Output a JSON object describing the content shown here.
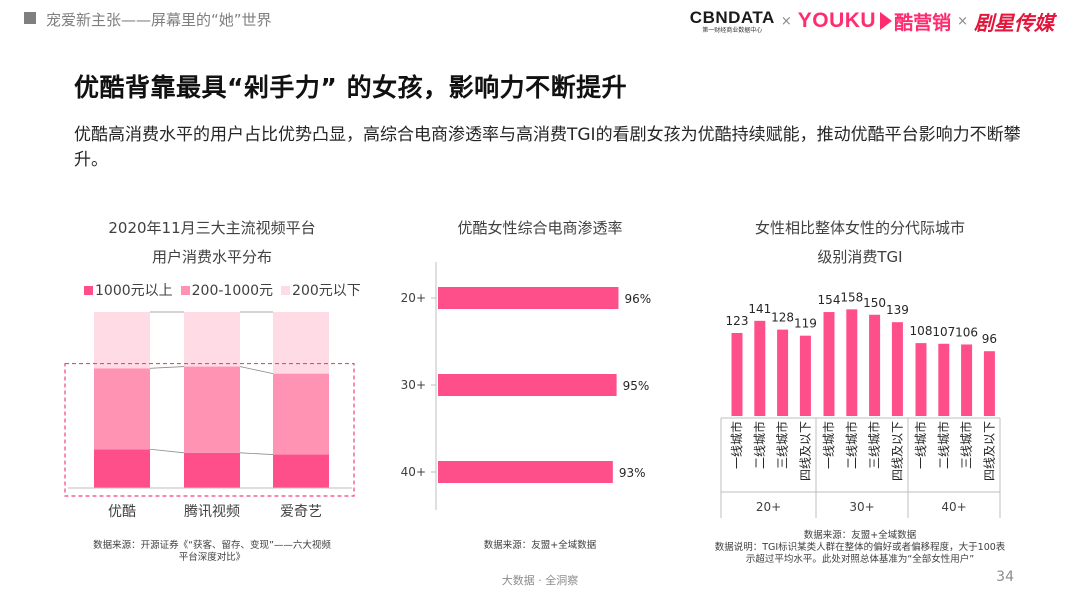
{
  "header": {
    "section_title": "宠爱新主张——屏幕里的“她”世界",
    "logos": {
      "cbndata": "CBNDATA",
      "cbndata_sub": "第一财经商业数据中心",
      "times1": "×",
      "youku": "YOUKU",
      "kuyingxiao": "酷营销",
      "times2": "×",
      "juxing": "剧星传媒"
    }
  },
  "headline": "优酷背靠最具“剁手力” 的女孩，影响力不断提升",
  "subheadline": "优酷高消费水平的用户占比优势凸显，高综合电商渗透率与高消费TGI的看剧女孩为优酷持续赋能，推动优酷平台影响力不断攀升。",
  "colors": {
    "high": "#ff4f8b",
    "mid": "#ff93b4",
    "low": "#ffdbe6",
    "dash": "#f0457a"
  },
  "chart1": {
    "title_line1": "2020年11月三大主流视频平台",
    "title_line2": "用户消费水平分布",
    "source_line1": "数据来源：开源证券《“获客、留存、变现”——六大视频",
    "source_line2": "平台深度对比》"
  },
  "chart2": {
    "title": "优酷女性综合电商渗透率",
    "source": "数据来源：友盟+全域数据"
  },
  "chart3": {
    "title_line1": "女性相比整体女性的分代际城市",
    "title_line2": "级别消费TGI",
    "source_line1": "数据来源：友盟+全域数据",
    "source_line2": "数据说明：TGI标识某类人群在整体的偏好或者偏移程度，大于100表",
    "source_line3": "示超过平均水平。此处对照总体基准为“全部女性用户”"
  },
  "chart_data": [
    {
      "type": "bar",
      "stacked": true,
      "percent_stacked": true,
      "categories": [
        "优酷",
        "腾讯视频",
        "爱奇艺"
      ],
      "series": [
        {
          "name": "1000元以上",
          "values": [
            0.22,
            0.2,
            0.19
          ]
        },
        {
          "name": "200-1000元",
          "values": [
            0.46,
            0.49,
            0.46
          ]
        },
        {
          "name": "200元以下",
          "values": [
            0.32,
            0.31,
            0.35
          ]
        }
      ],
      "legend": "top",
      "title": "2020年11月三大主流视频平台用户消费水平分布"
    },
    {
      "type": "bar",
      "orientation": "horizontal",
      "categories": [
        "20+",
        "30+",
        "40+"
      ],
      "values": [
        96,
        95,
        93
      ],
      "data_labels": [
        "96%",
        "95%",
        "93%"
      ],
      "xlim": [
        0,
        100
      ],
      "title": "优酷女性综合电商渗透率"
    },
    {
      "type": "bar",
      "groups": [
        "20+",
        "30+",
        "40+"
      ],
      "categories": [
        "一线城市",
        "二线城市",
        "三线城市",
        "四线及以下"
      ],
      "series": [
        {
          "group": "20+",
          "values": [
            123,
            141,
            128,
            119
          ]
        },
        {
          "group": "30+",
          "values": [
            154,
            158,
            150,
            139
          ]
        },
        {
          "group": "40+",
          "values": [
            108,
            107,
            106,
            96
          ]
        }
      ],
      "ylim": [
        0,
        165
      ],
      "title": "女性相比整体女性的分代际城市级别消费TGI"
    }
  ],
  "footer": {
    "text": "大数据 · 全洞察",
    "page_number": "34"
  }
}
